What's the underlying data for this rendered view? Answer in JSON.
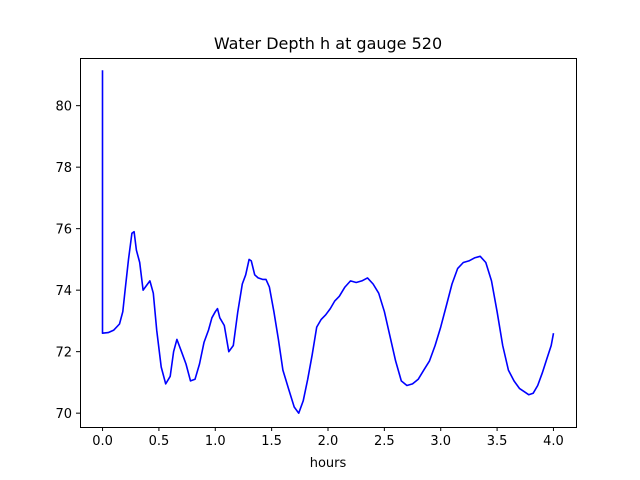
{
  "chart_data": {
    "type": "line",
    "title": "Water Depth h at gauge 520",
    "xlabel": "hours",
    "ylabel": "",
    "xlim": [
      -0.2,
      4.2
    ],
    "ylim": [
      69.55,
      81.55
    ],
    "xticks": [
      0.0,
      0.5,
      1.0,
      1.5,
      2.0,
      2.5,
      3.0,
      3.5,
      4.0
    ],
    "xtick_labels": [
      "0.0",
      "0.5",
      "1.0",
      "1.5",
      "2.0",
      "2.5",
      "3.0",
      "3.5",
      "4.0"
    ],
    "yticks": [
      70,
      72,
      74,
      76,
      78,
      80
    ],
    "ytick_labels": [
      "70",
      "72",
      "74",
      "76",
      "78",
      "80"
    ],
    "grid": false,
    "series": [
      {
        "color": "#0000ff",
        "x": [
          0.0,
          0.0,
          0.0,
          0.05,
          0.1,
          0.15,
          0.18,
          0.2,
          0.23,
          0.26,
          0.28,
          0.3,
          0.33,
          0.36,
          0.39,
          0.42,
          0.45,
          0.48,
          0.52,
          0.56,
          0.6,
          0.63,
          0.66,
          0.7,
          0.74,
          0.78,
          0.82,
          0.86,
          0.9,
          0.94,
          0.97,
          1.0,
          1.02,
          1.04,
          1.08,
          1.12,
          1.16,
          1.2,
          1.24,
          1.27,
          1.3,
          1.32,
          1.35,
          1.38,
          1.42,
          1.45,
          1.48,
          1.52,
          1.56,
          1.6,
          1.65,
          1.7,
          1.74,
          1.78,
          1.82,
          1.86,
          1.9,
          1.94,
          1.98,
          2.02,
          2.06,
          2.1,
          2.15,
          2.2,
          2.25,
          2.3,
          2.35,
          2.4,
          2.45,
          2.5,
          2.55,
          2.6,
          2.65,
          2.7,
          2.75,
          2.8,
          2.85,
          2.9,
          2.95,
          3.0,
          3.05,
          3.1,
          3.15,
          3.2,
          3.25,
          3.3,
          3.35,
          3.4,
          3.45,
          3.5,
          3.55,
          3.6,
          3.65,
          3.7,
          3.74,
          3.78,
          3.82,
          3.86,
          3.9,
          3.94,
          3.98,
          4.0
        ],
        "y": [
          81.15,
          72.6,
          72.6,
          72.62,
          72.7,
          72.9,
          73.3,
          74.0,
          75.0,
          75.85,
          75.9,
          75.3,
          74.9,
          74.0,
          74.15,
          74.3,
          73.9,
          72.7,
          71.5,
          70.95,
          71.2,
          72.0,
          72.4,
          72.0,
          71.6,
          71.05,
          71.1,
          71.6,
          72.3,
          72.7,
          73.1,
          73.3,
          73.4,
          73.1,
          72.85,
          72.0,
          72.2,
          73.3,
          74.2,
          74.5,
          75.0,
          74.95,
          74.5,
          74.4,
          74.35,
          74.35,
          74.1,
          73.3,
          72.4,
          71.4,
          70.8,
          70.2,
          70.0,
          70.4,
          71.1,
          71.9,
          72.8,
          73.05,
          73.2,
          73.4,
          73.65,
          73.8,
          74.1,
          74.3,
          74.25,
          74.3,
          74.4,
          74.2,
          73.9,
          73.3,
          72.5,
          71.7,
          71.05,
          70.9,
          70.95,
          71.1,
          71.4,
          71.7,
          72.2,
          72.8,
          73.5,
          74.2,
          74.7,
          74.9,
          74.95,
          75.05,
          75.1,
          74.9,
          74.3,
          73.3,
          72.2,
          71.4,
          71.05,
          70.8,
          70.7,
          70.6,
          70.65,
          70.9,
          71.3,
          71.75,
          72.2,
          72.6
        ]
      }
    ]
  }
}
